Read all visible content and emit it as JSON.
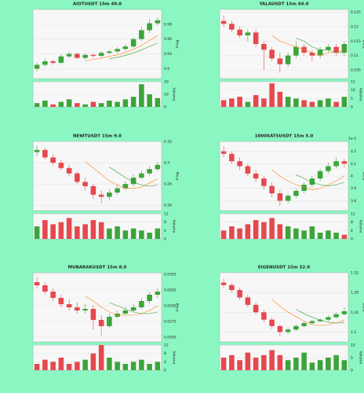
{
  "chart_data": [
    {
      "type": "candlestick",
      "title": "AIOTUSDT 15m 40.0",
      "ylabel": "Price",
      "volume_label": "Volume",
      "up_color": "#3aa53a",
      "down_color": "#e5484d",
      "open": [
        0.9,
        0.908,
        0.915,
        0.912,
        0.925,
        0.93,
        0.922,
        0.928,
        0.926,
        0.932,
        0.935,
        0.94,
        0.945,
        0.96,
        0.978,
        0.992
      ],
      "high": [
        0.912,
        0.92,
        0.918,
        0.929,
        0.934,
        0.933,
        0.931,
        0.931,
        0.936,
        0.938,
        0.944,
        0.95,
        0.964,
        0.985,
        1.0,
        1.004
      ],
      "low": [
        0.895,
        0.904,
        0.908,
        0.909,
        0.921,
        0.919,
        0.918,
        0.922,
        0.923,
        0.929,
        0.931,
        0.936,
        0.941,
        0.956,
        0.972,
        0.988
      ],
      "close": [
        0.908,
        0.915,
        0.912,
        0.925,
        0.93,
        0.922,
        0.928,
        0.926,
        0.932,
        0.935,
        0.94,
        0.945,
        0.96,
        0.978,
        0.992,
        0.998
      ],
      "volume": [
        3,
        5,
        2,
        4,
        6,
        3,
        2,
        4,
        3,
        5,
        4,
        6,
        8,
        18,
        10,
        7
      ],
      "lines": [
        {
          "color": "#ff7f0e",
          "values": [
            null,
            null,
            null,
            null,
            null,
            null,
            0.916,
            0.919,
            0.921,
            0.925,
            0.928,
            0.933,
            0.939,
            0.947,
            0.957,
            0.967
          ]
        },
        {
          "color": "#2ca02c",
          "values": [
            null,
            null,
            null,
            null,
            null,
            null,
            null,
            null,
            null,
            0.92,
            0.923,
            0.927,
            0.932,
            0.938,
            0.945,
            0.952
          ]
        }
      ],
      "ylim": [
        0.88,
        1.02
      ],
      "yticks": [
        0.9,
        0.93,
        0.96,
        0.99
      ],
      "vlim": [
        0,
        20
      ],
      "vticks": [
        0,
        10,
        20
      ],
      "grid": true
    },
    {
      "type": "candlestick",
      "title": "YALAUSDT 15m 64.0",
      "ylabel": "Price",
      "volume_label": "Volume",
      "up_color": "#3aa53a",
      "down_color": "#e5484d",
      "open": [
        0.122,
        0.121,
        0.119,
        0.117,
        0.118,
        0.114,
        0.112,
        0.109,
        0.107,
        0.11,
        0.113,
        0.111,
        0.11,
        0.112,
        0.113,
        0.111
      ],
      "high": [
        0.124,
        0.122,
        0.12,
        0.119,
        0.119,
        0.115,
        0.113,
        0.111,
        0.111,
        0.115,
        0.114,
        0.112,
        0.113,
        0.114,
        0.114,
        0.115
      ],
      "low": [
        0.12,
        0.118,
        0.116,
        0.115,
        0.113,
        0.105,
        0.108,
        0.104,
        0.106,
        0.109,
        0.11,
        0.108,
        0.109,
        0.111,
        0.11,
        0.11
      ],
      "close": [
        0.121,
        0.119,
        0.117,
        0.118,
        0.114,
        0.112,
        0.109,
        0.107,
        0.11,
        0.113,
        0.111,
        0.11,
        0.112,
        0.113,
        0.111,
        0.114
      ],
      "volume": [
        4,
        5,
        6,
        3,
        7,
        5,
        14,
        9,
        6,
        5,
        4,
        3,
        4,
        5,
        3,
        6
      ],
      "lines": [
        {
          "color": "#ff7f0e",
          "values": [
            null,
            null,
            null,
            null,
            null,
            null,
            0.117,
            0.115,
            0.114,
            0.113,
            0.112,
            0.111,
            0.11,
            0.111,
            0.111,
            0.112
          ]
        },
        {
          "color": "#2ca02c",
          "values": [
            null,
            null,
            null,
            null,
            null,
            null,
            null,
            null,
            null,
            0.116,
            0.115,
            0.113,
            0.112,
            0.112,
            0.111,
            0.111
          ]
        }
      ],
      "ylim": [
        0.102,
        0.126
      ],
      "yticks": [
        0.105,
        0.11,
        0.115,
        0.12,
        0.125
      ],
      "vlim": [
        0,
        15
      ],
      "vticks": [
        0,
        5,
        10,
        15
      ],
      "grid": true
    },
    {
      "type": "candlestick",
      "title": "NEWTUSDT 15m 9.0",
      "ylabel": "Price",
      "volume_label": "Volume",
      "up_color": "#3aa53a",
      "down_color": "#e5484d",
      "open": [
        0.31,
        0.312,
        0.305,
        0.3,
        0.295,
        0.29,
        0.282,
        0.278,
        0.27,
        0.268,
        0.272,
        0.276,
        0.28,
        0.286,
        0.29,
        0.294
      ],
      "high": [
        0.316,
        0.314,
        0.308,
        0.303,
        0.298,
        0.292,
        0.286,
        0.28,
        0.274,
        0.275,
        0.279,
        0.283,
        0.289,
        0.293,
        0.297,
        0.301
      ],
      "low": [
        0.306,
        0.303,
        0.298,
        0.293,
        0.287,
        0.28,
        0.274,
        0.266,
        0.262,
        0.265,
        0.27,
        0.274,
        0.278,
        0.284,
        0.288,
        0.292
      ],
      "close": [
        0.312,
        0.305,
        0.3,
        0.295,
        0.29,
        0.282,
        0.278,
        0.27,
        0.268,
        0.272,
        0.276,
        0.28,
        0.286,
        0.29,
        0.294,
        0.298
      ],
      "volume": [
        6,
        9,
        7,
        8,
        10,
        6,
        7,
        9,
        8,
        5,
        6,
        4,
        5,
        4,
        3,
        5
      ],
      "lines": [
        {
          "color": "#ff7f0e",
          "values": [
            null,
            null,
            null,
            null,
            null,
            null,
            0.301,
            0.295,
            0.289,
            0.283,
            0.279,
            0.276,
            0.276,
            0.277,
            0.281,
            0.285
          ]
        },
        {
          "color": "#2ca02c",
          "values": [
            null,
            null,
            null,
            null,
            null,
            null,
            null,
            null,
            null,
            0.296,
            0.291,
            0.286,
            0.282,
            0.279,
            0.278,
            0.279
          ]
        }
      ],
      "ylim": [
        0.255,
        0.32
      ],
      "yticks": [
        0.26,
        0.28,
        0.3,
        0.32
      ],
      "vlim": [
        0,
        12
      ],
      "vticks": [
        0,
        4,
        8,
        12
      ],
      "grid": true
    },
    {
      "type": "candlestick",
      "title": "1000SATSUSDT 15m 5.0",
      "ylabel": "Price",
      "volume_label": "Volume",
      "y_offset_label": "1e-5",
      "up_color": "#3aa53a",
      "down_color": "#e5484d",
      "open": [
        4.2,
        4.18,
        4.12,
        4.08,
        4.02,
        3.98,
        3.92,
        3.86,
        3.8,
        3.84,
        3.88,
        3.93,
        3.98,
        4.04,
        4.08,
        4.12
      ],
      "high": [
        4.24,
        4.2,
        4.15,
        4.1,
        4.05,
        4.0,
        3.95,
        3.89,
        3.86,
        3.9,
        3.95,
        4.0,
        4.06,
        4.11,
        4.15,
        4.14
      ],
      "low": [
        4.15,
        4.1,
        4.05,
        4.0,
        3.95,
        3.89,
        3.83,
        3.76,
        3.78,
        3.82,
        3.86,
        3.91,
        3.96,
        4.02,
        4.06,
        4.07
      ],
      "close": [
        4.18,
        4.12,
        4.08,
        4.02,
        3.98,
        3.92,
        3.86,
        3.8,
        3.84,
        3.88,
        3.93,
        3.98,
        4.04,
        4.08,
        4.12,
        4.1
      ],
      "volume": [
        4,
        6,
        5,
        7,
        9,
        8,
        10,
        7,
        6,
        5,
        4,
        6,
        3,
        4,
        3,
        2
      ],
      "lines": [
        {
          "color": "#ff7f0e",
          "values": [
            null,
            null,
            null,
            null,
            null,
            null,
            4.05,
            4.0,
            3.96,
            3.93,
            3.91,
            3.89,
            3.9,
            3.93,
            3.96,
            4.0
          ]
        },
        {
          "color": "#2ca02c",
          "values": [
            null,
            null,
            null,
            null,
            null,
            null,
            null,
            null,
            null,
            4.01,
            3.98,
            3.95,
            3.93,
            3.92,
            3.93,
            3.95
          ]
        }
      ],
      "ylim": [
        3.72,
        4.28
      ],
      "yticks": [
        3.8,
        3.9,
        4.0,
        4.1,
        4.2
      ],
      "vlim": [
        0,
        12
      ],
      "vticks": [
        0,
        4,
        8,
        12
      ],
      "grid": true
    },
    {
      "type": "candlestick",
      "title": "MUBARAKUSDT 15m 8.0",
      "ylabel": "Price",
      "volume_label": "Volume",
      "up_color": "#3aa53a",
      "down_color": "#e5484d",
      "open": [
        0.03,
        0.0298,
        0.0294,
        0.029,
        0.0286,
        0.0284,
        0.0282,
        0.0283,
        0.0276,
        0.0272,
        0.0278,
        0.028,
        0.0282,
        0.0284,
        0.0288,
        0.0292
      ],
      "high": [
        0.0303,
        0.03,
        0.0296,
        0.0292,
        0.0289,
        0.0287,
        0.0286,
        0.0285,
        0.0279,
        0.028,
        0.0282,
        0.0284,
        0.0286,
        0.029,
        0.0294,
        0.0296
      ],
      "low": [
        0.0296,
        0.0292,
        0.0288,
        0.0284,
        0.0282,
        0.028,
        0.028,
        0.027,
        0.0266,
        0.0271,
        0.0277,
        0.0279,
        0.0281,
        0.0283,
        0.0286,
        0.029
      ],
      "close": [
        0.0298,
        0.0294,
        0.029,
        0.0286,
        0.0284,
        0.0282,
        0.0283,
        0.0276,
        0.0272,
        0.0278,
        0.028,
        0.0282,
        0.0284,
        0.0288,
        0.0292,
        0.0294
      ],
      "volume": [
        3,
        5,
        4,
        6,
        3,
        4,
        5,
        8,
        12,
        6,
        4,
        3,
        4,
        5,
        3,
        4
      ],
      "lines": [
        {
          "color": "#ff7f0e",
          "values": [
            null,
            null,
            null,
            null,
            null,
            null,
            0.0291,
            0.0288,
            0.0284,
            0.0281,
            0.0279,
            0.0279,
            0.0279,
            0.028,
            0.0282,
            0.0285
          ]
        },
        {
          "color": "#2ca02c",
          "values": [
            null,
            null,
            null,
            null,
            null,
            null,
            null,
            null,
            null,
            0.0287,
            0.0285,
            0.0283,
            0.0281,
            0.028,
            0.028,
            0.0281
          ]
        }
      ],
      "ylim": [
        0.0262,
        0.0306
      ],
      "yticks": [
        0.0265,
        0.0275,
        0.0285,
        0.0295,
        0.0305
      ],
      "vlim": [
        0,
        12
      ],
      "vticks": [
        0,
        4,
        8,
        12
      ],
      "grid": true
    },
    {
      "type": "candlestick",
      "title": "EIGENUSDT 15m 32.0",
      "ylabel": "Price",
      "volume_label": "Volume",
      "up_color": "#3aa53a",
      "down_color": "#e5484d",
      "open": [
        1.3,
        1.295,
        1.285,
        1.27,
        1.255,
        1.24,
        1.225,
        1.212,
        1.2,
        1.205,
        1.212,
        1.218,
        1.222,
        1.225,
        1.23,
        1.236
      ],
      "high": [
        1.308,
        1.3,
        1.29,
        1.275,
        1.26,
        1.245,
        1.23,
        1.216,
        1.209,
        1.216,
        1.221,
        1.225,
        1.228,
        1.234,
        1.24,
        1.25
      ],
      "low": [
        1.29,
        1.28,
        1.265,
        1.25,
        1.235,
        1.22,
        1.206,
        1.192,
        1.196,
        1.202,
        1.209,
        1.215,
        1.219,
        1.222,
        1.227,
        1.233
      ],
      "close": [
        1.295,
        1.285,
        1.27,
        1.255,
        1.24,
        1.225,
        1.212,
        1.2,
        1.205,
        1.212,
        1.218,
        1.222,
        1.225,
        1.23,
        1.236,
        1.242
      ],
      "volume": [
        5,
        6,
        4,
        7,
        5,
        6,
        8,
        6,
        4,
        5,
        7,
        3,
        4,
        5,
        6,
        4
      ],
      "lines": [
        {
          "color": "#ff7f0e",
          "values": [
            null,
            null,
            null,
            null,
            null,
            null,
            1.266,
            1.252,
            1.24,
            1.231,
            1.222,
            1.215,
            1.213,
            1.215,
            1.219,
            1.224
          ]
        },
        {
          "color": "#2ca02c",
          "values": [
            null,
            null,
            null,
            null,
            null,
            null,
            null,
            null,
            null,
            1.246,
            1.237,
            1.23,
            1.224,
            1.22,
            1.218,
            1.219
          ]
        }
      ],
      "ylim": [
        1.18,
        1.32
      ],
      "yticks": [
        1.2,
        1.24,
        1.28,
        1.32
      ],
      "vlim": [
        0,
        10
      ],
      "vticks": [
        0,
        5,
        10
      ],
      "grid": true
    }
  ]
}
